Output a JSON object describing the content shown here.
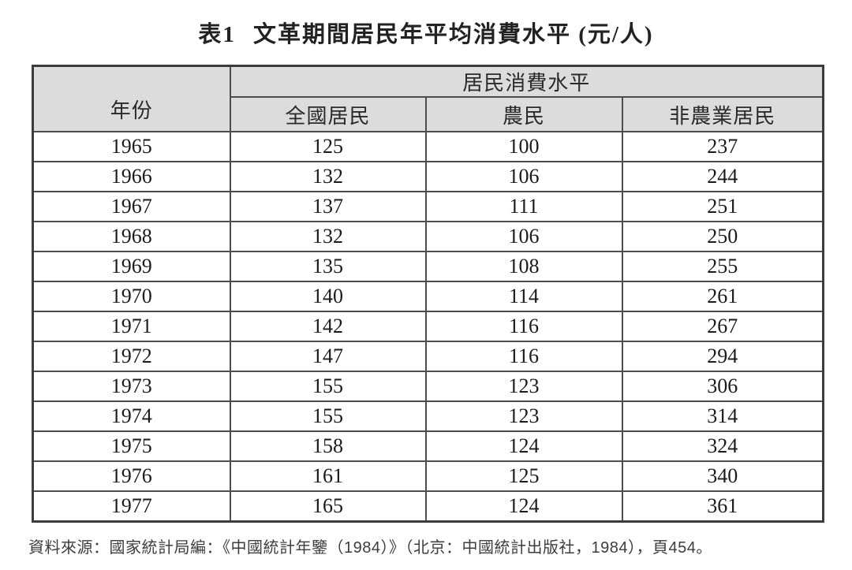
{
  "title": {
    "label": "表1",
    "text": "文革期間居民年平均消費水平 (元/人)"
  },
  "table": {
    "year_header": "年份",
    "group_header": "居民消費水平",
    "sub_headers": [
      "全國居民",
      "農民",
      "非農業居民"
    ],
    "rows": [
      [
        "1965",
        "125",
        "100",
        "237"
      ],
      [
        "1966",
        "132",
        "106",
        "244"
      ],
      [
        "1967",
        "137",
        "111",
        "251"
      ],
      [
        "1968",
        "132",
        "106",
        "250"
      ],
      [
        "1969",
        "135",
        "108",
        "255"
      ],
      [
        "1970",
        "140",
        "114",
        "261"
      ],
      [
        "1971",
        "142",
        "116",
        "267"
      ],
      [
        "1972",
        "147",
        "116",
        "294"
      ],
      [
        "1973",
        "155",
        "123",
        "306"
      ],
      [
        "1974",
        "155",
        "123",
        "314"
      ],
      [
        "1975",
        "158",
        "124",
        "324"
      ],
      [
        "1976",
        "161",
        "125",
        "340"
      ],
      [
        "1977",
        "165",
        "124",
        "361"
      ]
    ]
  },
  "source_note": "資料來源：國家統計局編：《中國統計年鑒（1984）》（北京：中國統計出版社，1984），頁454。",
  "colors": {
    "header_bg": "#dcdcdc",
    "border": "#4d4d4d",
    "outer_border": "#3c3c3c",
    "text": "#1b1b1b"
  },
  "chart_data": {
    "type": "table",
    "title": "表1 文革期間居民年平均消費水平 (元/人)",
    "group_header": "居民消費水平",
    "categories": [
      1965,
      1966,
      1967,
      1968,
      1969,
      1970,
      1971,
      1972,
      1973,
      1974,
      1975,
      1976,
      1977
    ],
    "series": [
      {
        "name": "全國居民",
        "values": [
          125,
          132,
          137,
          132,
          135,
          140,
          142,
          147,
          155,
          155,
          158,
          161,
          165
        ]
      },
      {
        "name": "農民",
        "values": [
          100,
          106,
          111,
          106,
          108,
          114,
          116,
          116,
          123,
          123,
          124,
          125,
          124
        ]
      },
      {
        "name": "非農業居民",
        "values": [
          237,
          244,
          251,
          250,
          255,
          261,
          267,
          294,
          306,
          314,
          324,
          340,
          361
        ]
      }
    ],
    "xlabel": "年份",
    "unit": "元/人",
    "source": "資料來源：國家統計局編：《中國統計年鑒（1984）》（北京：中國統計出版社，1984），頁454。"
  }
}
